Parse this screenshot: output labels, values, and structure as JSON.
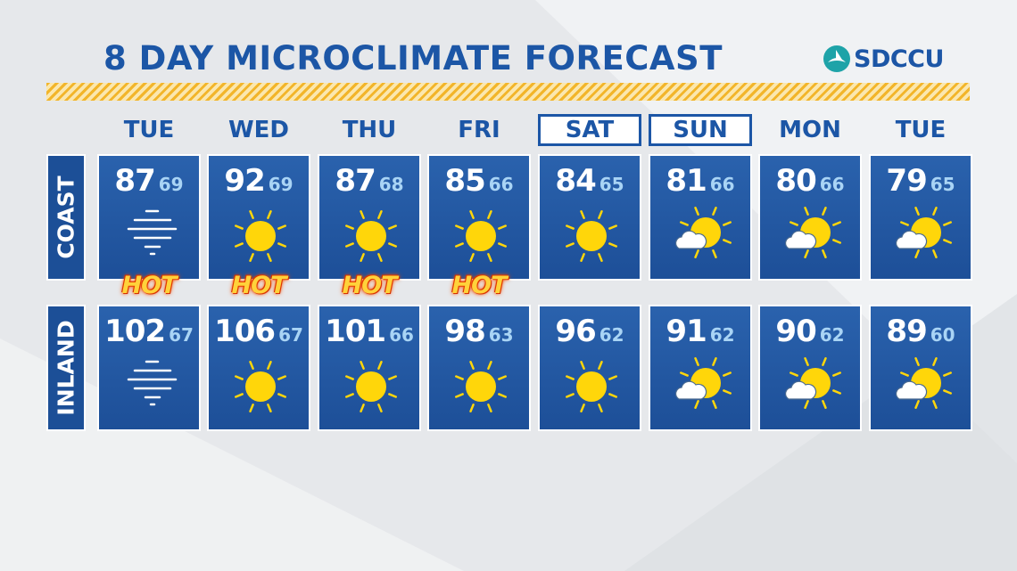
{
  "header": {
    "title": "8 DAY MICROCLIMATE FORECAST",
    "sponsor": "SDCCU"
  },
  "days": [
    "TUE",
    "WED",
    "THU",
    "FRI",
    "SAT",
    "SUN",
    "MON",
    "TUE"
  ],
  "rows": [
    {
      "label": "COAST",
      "cells": [
        {
          "high": 87,
          "low": 69,
          "badge": "HOT"
        },
        {
          "high": 92,
          "low": 69,
          "badge": "HOT"
        },
        {
          "high": 87,
          "low": 68,
          "badge": "HOT"
        },
        {
          "high": 85,
          "low": 66,
          "badge": "HOT"
        },
        {
          "high": 84,
          "low": 65
        },
        {
          "high": 81,
          "low": 66
        },
        {
          "high": 80,
          "low": 66
        },
        {
          "high": 79,
          "low": 65
        }
      ]
    },
    {
      "label": "INLAND",
      "cells": [
        {
          "high": 102,
          "low": 67
        },
        {
          "high": 106,
          "low": 67
        },
        {
          "high": 101,
          "low": 66
        },
        {
          "high": 98,
          "low": 63
        },
        {
          "high": 96,
          "low": 62
        },
        {
          "high": 91,
          "low": 62
        },
        {
          "high": 90,
          "low": 62
        },
        {
          "high": 89,
          "low": 60
        }
      ]
    }
  ]
}
